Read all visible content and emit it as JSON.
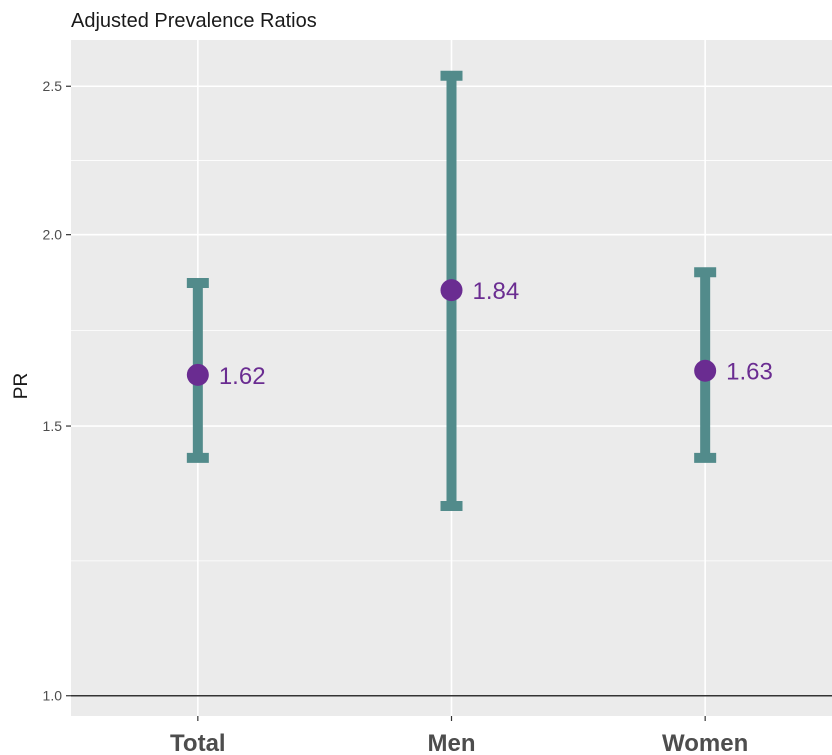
{
  "chart_data": {
    "type": "errorbar",
    "title": "Adjusted Prevalence Ratios",
    "xlabel": "",
    "ylabel": "PR",
    "categories": [
      "Total",
      "Men",
      "Women"
    ],
    "series": [
      {
        "estimates": [
          1.62,
          1.84,
          1.63
        ],
        "lower": [
          1.43,
          1.33,
          1.43
        ],
        "upper": [
          1.86,
          2.54,
          1.89
        ]
      }
    ],
    "point_labels": [
      "1.62",
      "1.84",
      "1.63"
    ],
    "y_scale": "log",
    "ylim": [
      0.97,
      2.68
    ],
    "y_ticks": [
      1.0,
      1.5,
      2.0,
      2.5
    ],
    "y_tick_labels": [
      "1.0",
      "1.5",
      "2.0",
      "2.5"
    ],
    "reference_line": 1.0,
    "grid": true,
    "legend": "none",
    "colors": {
      "panel": "#ebebeb",
      "grid": "#ffffff",
      "errorbar": "#528b8b",
      "point": "#6a2c91",
      "label": "#6a2c91",
      "reference": "#333333"
    }
  }
}
